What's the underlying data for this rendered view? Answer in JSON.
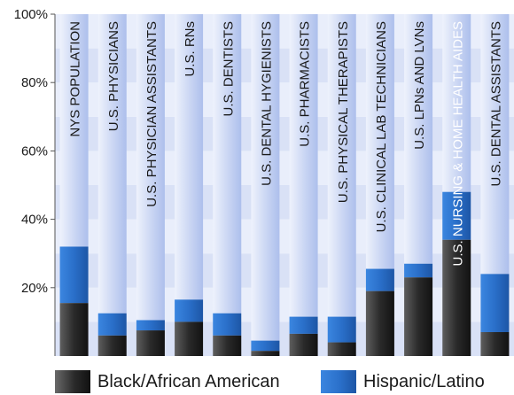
{
  "chart_data": {
    "type": "bar",
    "stacked": true,
    "categories": [
      "NYS POPULATION",
      "U.S. PHYSICIANS",
      "U.S. PHYSICIAN ASSISTANTS",
      "U.S. RNs",
      "U.S. DENTISTS",
      "U.S. DENTAL HYGIENISTS",
      "U.S. PHARMACISTS",
      "U.S. PHYSICAL THERAPISTS",
      "U.S. CLINICAL LAB TECHNICIANS",
      "U.S. LPNs AND LVNs",
      "U.S. NURSING & HOME HEALTH AIDES",
      "U.S. DENTAL ASSISTANTS"
    ],
    "series": [
      {
        "name": "Black/African American",
        "values": [
          15.5,
          6,
          7.5,
          10,
          6,
          1.5,
          6.5,
          4,
          19,
          23,
          34,
          7
        ]
      },
      {
        "name": "Hispanic/Latino",
        "values": [
          16.5,
          6.5,
          3,
          6.5,
          6.5,
          3,
          5,
          7.5,
          6.5,
          4,
          14,
          17
        ]
      }
    ],
    "title": "",
    "xlabel": "",
    "ylabel": "",
    "ylim": [
      0,
      100
    ],
    "yticks": [
      "20%",
      "40%",
      "60%",
      "80%",
      "100%"
    ],
    "colors": {
      "black_series": "#3a3a3a",
      "hispanic_series": "#2a6fc9",
      "remainder": "#cfd9f4",
      "band_dark": "#d9e1f6",
      "band_light": "#e9eefb"
    },
    "legend_position": "bottom",
    "grid": true
  }
}
